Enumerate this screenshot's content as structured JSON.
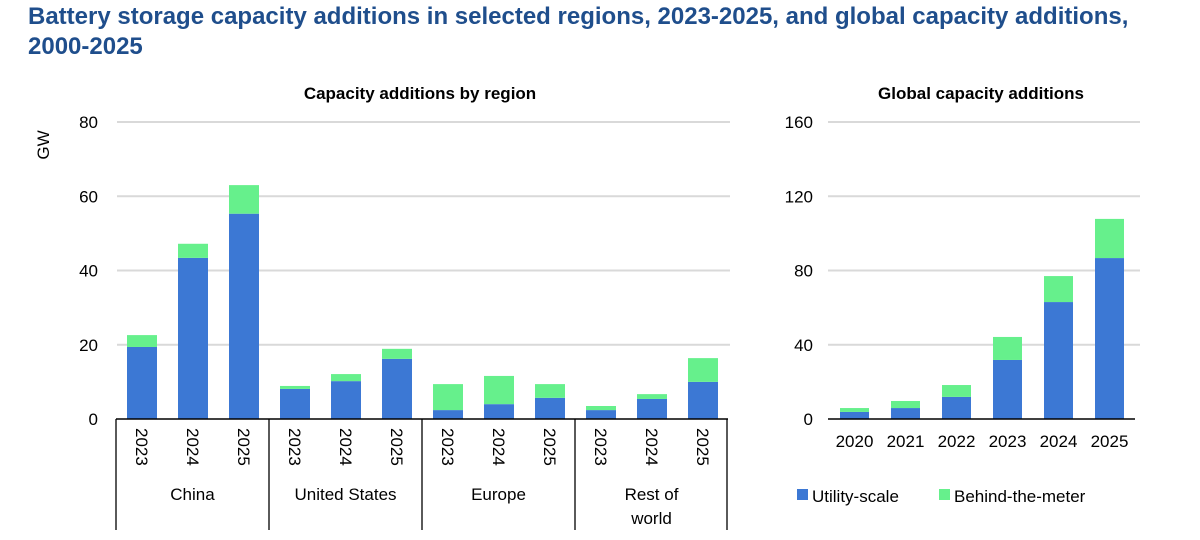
{
  "page": {
    "title": "Battery storage capacity additions in selected regions, 2023-2025, and global capacity additions, 2000-2025"
  },
  "colors": {
    "utility": "#3c78d4",
    "btm": "#66f08c",
    "grid": "#d9d9d9",
    "title": "#1f4e8c"
  },
  "chart_data": [
    {
      "type": "bar",
      "stacked": true,
      "title": "Capacity additions by region",
      "ylabel": "GW",
      "xlabel": "",
      "ylim": [
        0,
        80
      ],
      "yticks": [
        0,
        20,
        40,
        60,
        80
      ],
      "grid": true,
      "groups": [
        {
          "name": "China",
          "categories": [
            "2023",
            "2024",
            "2025"
          ]
        },
        {
          "name": "United States",
          "categories": [
            "2023",
            "2024",
            "2025"
          ]
        },
        {
          "name": "Europe",
          "categories": [
            "2023",
            "2024",
            "2025"
          ]
        },
        {
          "name": "Rest of world",
          "categories": [
            "2023",
            "2024",
            "2025"
          ]
        }
      ],
      "series": [
        {
          "name": "Utility-scale",
          "values": [
            19.4,
            43.4,
            55.3,
            8.1,
            10.2,
            16.2,
            2.4,
            4.0,
            5.7,
            2.4,
            5.4,
            10.0
          ]
        },
        {
          "name": "Behind-the-meter",
          "values": [
            3.2,
            3.8,
            7.7,
            0.8,
            1.9,
            2.7,
            7.0,
            7.6,
            3.7,
            1.1,
            1.3,
            6.4
          ]
        }
      ]
    },
    {
      "type": "bar",
      "stacked": true,
      "title": "Global capacity additions",
      "ylabel": "",
      "xlabel": "",
      "ylim": [
        0,
        160
      ],
      "yticks": [
        0,
        40,
        80,
        120,
        160
      ],
      "grid": true,
      "categories": [
        "2020",
        "2021",
        "2022",
        "2023",
        "2024",
        "2025"
      ],
      "series": [
        {
          "name": "Utility-scale",
          "values": [
            3.8,
            5.9,
            11.9,
            31.8,
            63,
            86.7
          ]
        },
        {
          "name": "Behind-the-meter",
          "values": [
            2.1,
            3.8,
            6.4,
            12.4,
            14,
            21.1
          ]
        }
      ],
      "legend": {
        "position": "bottom",
        "entries": [
          "Utility-scale",
          "Behind-the-meter"
        ]
      }
    }
  ]
}
